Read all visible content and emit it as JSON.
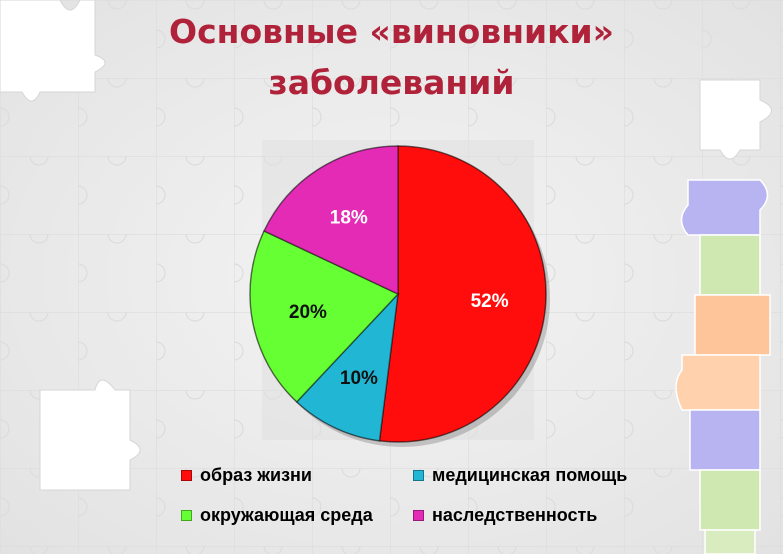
{
  "title": {
    "line1": "Основные «виновники»",
    "line2": "заболеваний"
  },
  "colors": {
    "title": "#b0223a",
    "background": "#ececec"
  },
  "chart_data": {
    "type": "pie",
    "categories": [
      "образ жизни",
      "медицинская помощь",
      "окружающая среда",
      "наследственность"
    ],
    "values": [
      52,
      10,
      20,
      18
    ],
    "labels": [
      "52%",
      "10%",
      "20%",
      "18%"
    ],
    "colors": [
      "#ff0d0d",
      "#21b6d4",
      "#66ff33",
      "#e32bb6"
    ],
    "start_angle": "12 o'clock",
    "direction": "clockwise",
    "legend": "bottom",
    "title": ""
  }
}
